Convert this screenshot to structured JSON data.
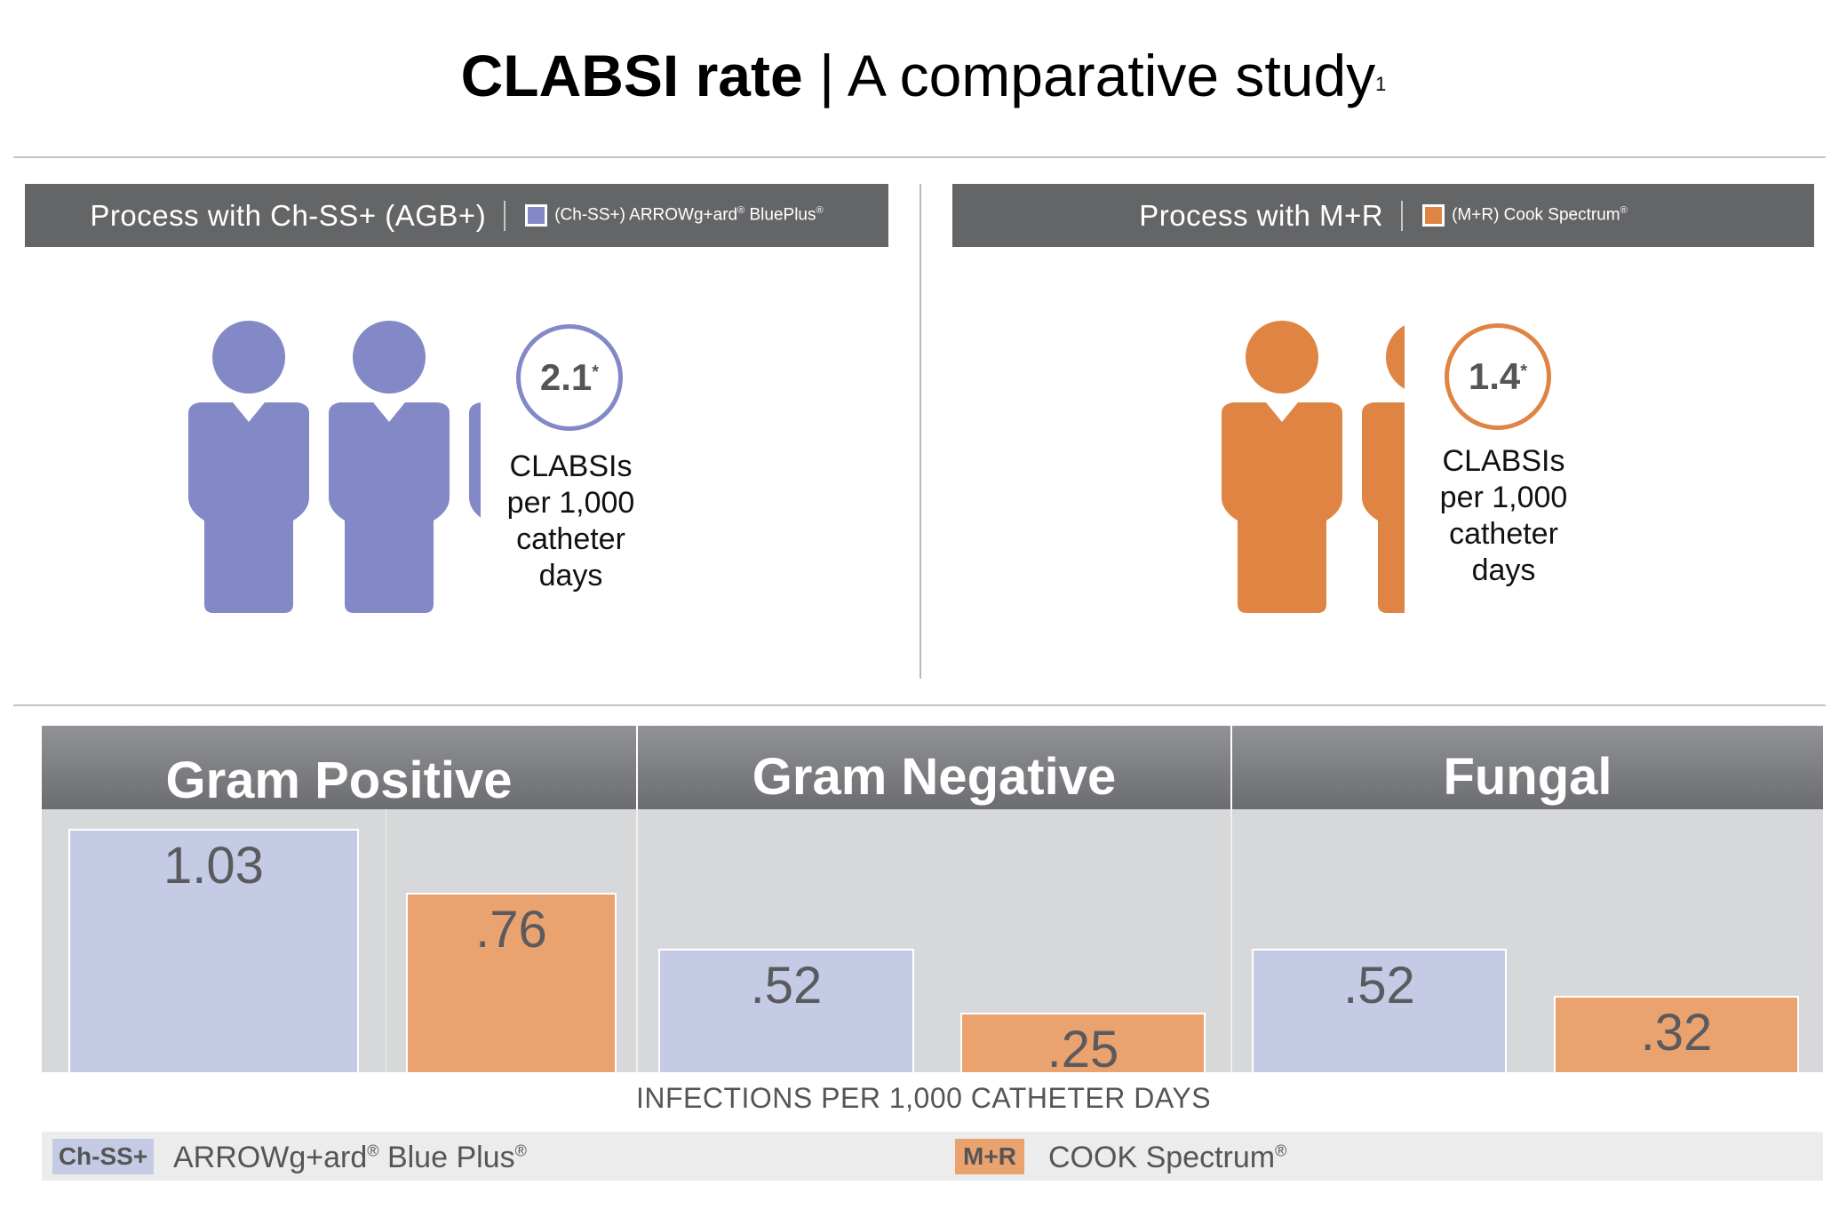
{
  "header": {
    "title_bold": "CLABSI rate",
    "title_sep": " | ",
    "title_rest": "A comparative study",
    "title_footnote": "1"
  },
  "panels": [
    {
      "title": "Process with Ch-SS+ (AGB+)",
      "legend_prefix": "(Ch-SS+) ARROWg+ard",
      "legend_reg": "®",
      "legend_suffix": " BluePlus",
      "legend_reg2": "®",
      "color": "#8289c6",
      "rate": "2.1",
      "rate_mark": "*",
      "rate_label_lines": [
        "CLABSIs",
        "per 1,000",
        "catheter",
        "days"
      ]
    },
    {
      "title": "Process with M+R",
      "legend_prefix": "(M+R) Cook Spectrum",
      "legend_reg": "®",
      "legend_suffix": "",
      "legend_reg2": "",
      "color": "#e08444",
      "rate": "1.4",
      "rate_mark": "*",
      "rate_label_lines": [
        "CLABSIs",
        "per 1,000",
        "catheter",
        "days"
      ]
    }
  ],
  "colors": {
    "ch_ss_bar": "#c5cae5",
    "m_r_bar": "#eaa26e",
    "ch_ss_icon": "#8289c6",
    "m_r_icon": "#e08444",
    "header_bar": "#646567"
  },
  "chart_data": {
    "type": "bar",
    "categories": [
      "Gram Positive",
      "Gram Negative",
      "Fungal"
    ],
    "series": [
      {
        "name": "Ch-SS+",
        "values": [
          1.03,
          0.52,
          0.52
        ],
        "labels": [
          "1.03",
          ".52",
          ".52"
        ]
      },
      {
        "name": "M+R",
        "values": [
          0.76,
          0.25,
          0.32
        ],
        "labels": [
          ".76",
          ".25",
          ".32"
        ]
      }
    ],
    "xlabel": "INFECTIONS PER 1,000 CATHETER DAYS",
    "ylim": [
      0,
      1.03
    ]
  },
  "legend": [
    {
      "chip": "Ch-SS+",
      "text": "ARROWg+ard",
      "reg": "®",
      "text2": " Blue Plus",
      "reg2": "®"
    },
    {
      "chip": "M+R",
      "text": "COOK Spectrum",
      "reg": "®",
      "text2": "",
      "reg2": ""
    }
  ]
}
